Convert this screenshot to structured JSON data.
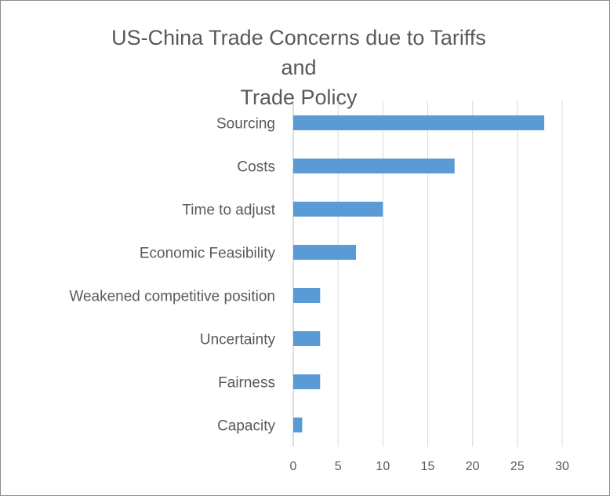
{
  "chart_data": {
    "type": "bar",
    "orientation": "horizontal",
    "title_lines": [
      "US-China Trade Concerns due to Tariffs and",
      "Trade Policy"
    ],
    "categories": [
      "Sourcing",
      "Costs",
      "Time to adjust",
      "Economic Feasibility",
      "Weakened competitive position",
      "Uncertainty",
      "Fairness",
      "Capacity"
    ],
    "values": [
      28,
      18,
      10,
      7,
      3,
      3,
      3,
      1
    ],
    "xlim": [
      0,
      30
    ],
    "xticks": [
      0,
      5,
      10,
      15,
      20,
      25,
      30
    ],
    "grid": true,
    "bar_color": "#5b9bd5",
    "legend": "none"
  }
}
